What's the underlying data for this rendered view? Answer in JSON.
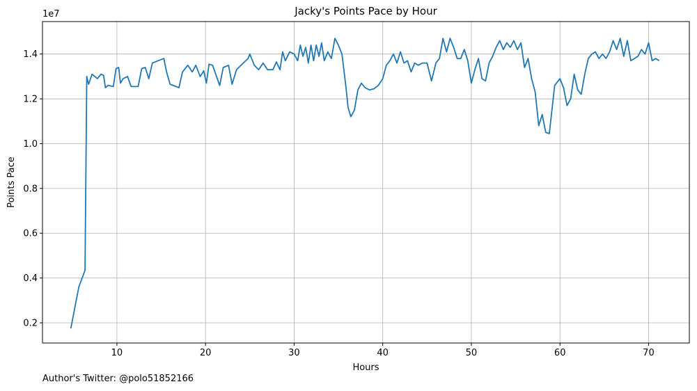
{
  "chart_data": {
    "type": "line",
    "title": "Jacky's Points Pace by Hour",
    "xlabel": "Hours",
    "ylabel": "Points Pace",
    "y_multiplier_label": "1e7",
    "xlim": [
      1.6,
      74.6
    ],
    "ylim": [
      0.11,
      1.545
    ],
    "x_ticks": [
      10,
      20,
      30,
      40,
      50,
      60,
      70
    ],
    "y_ticks": [
      0.2,
      0.4,
      0.6,
      0.8,
      1.0,
      1.2,
      1.4
    ],
    "x_tick_labels": [
      "10",
      "20",
      "30",
      "40",
      "50",
      "60",
      "70"
    ],
    "y_tick_labels": [
      "0.2",
      "0.4",
      "0.6",
      "0.8",
      "1.0",
      "1.2",
      "1.4"
    ],
    "grid": true,
    "series": [
      {
        "color": "#1f77b4",
        "x": [
          4.8,
          5.7,
          6.4,
          6.6,
          6.8,
          7.2,
          7.8,
          8.2,
          8.5,
          8.7,
          9.0,
          9.6,
          9.9,
          10.2,
          10.4,
          10.7,
          11.2,
          11.6,
          12.4,
          12.8,
          13.2,
          13.6,
          14.0,
          15.3,
          15.6,
          16.0,
          17.0,
          17.4,
          18.0,
          18.5,
          18.9,
          19.4,
          19.8,
          20.1,
          20.4,
          20.8,
          21.6,
          22.0,
          22.6,
          23.0,
          23.5,
          24.0,
          24.8,
          25.0,
          25.5,
          26.0,
          26.5,
          27.0,
          27.6,
          28.0,
          28.4,
          28.7,
          29.0,
          29.5,
          30.0,
          30.4,
          30.7,
          31.0,
          31.3,
          31.6,
          31.9,
          32.2,
          32.5,
          32.8,
          33.1,
          33.4,
          33.8,
          34.2,
          34.6,
          35.0,
          35.4,
          35.8,
          36.1,
          36.4,
          36.8,
          37.2,
          37.6,
          38.0,
          38.5,
          39.0,
          39.5,
          40.0,
          40.4,
          40.8,
          41.2,
          41.6,
          42.0,
          42.4,
          42.8,
          43.2,
          43.6,
          44.0,
          44.5,
          45.0,
          45.5,
          46.0,
          46.4,
          46.8,
          47.2,
          47.6,
          48.0,
          48.4,
          48.8,
          49.2,
          49.6,
          50.0,
          50.4,
          50.8,
          51.2,
          51.6,
          52.0,
          52.4,
          52.8,
          53.2,
          53.6,
          54.0,
          54.4,
          54.8,
          55.2,
          55.6,
          56.0,
          56.4,
          56.8,
          57.2,
          57.6,
          58.0,
          58.4,
          58.8,
          59.4,
          60.0,
          60.4,
          60.8,
          61.2,
          61.6,
          62.0,
          62.4,
          62.8,
          63.2,
          63.6,
          64.0,
          64.4,
          64.8,
          65.2,
          65.6,
          66.0,
          66.4,
          66.8,
          67.2,
          67.6,
          68.0,
          68.4,
          68.8,
          69.2,
          69.6,
          70.0,
          70.4,
          70.8,
          71.2
        ],
        "values": [
          0.175,
          0.36,
          0.435,
          1.3,
          1.265,
          1.31,
          1.29,
          1.31,
          1.305,
          1.25,
          1.26,
          1.255,
          1.335,
          1.34,
          1.27,
          1.29,
          1.3,
          1.255,
          1.255,
          1.335,
          1.34,
          1.29,
          1.36,
          1.38,
          1.32,
          1.265,
          1.25,
          1.32,
          1.35,
          1.32,
          1.35,
          1.3,
          1.325,
          1.27,
          1.355,
          1.35,
          1.26,
          1.34,
          1.35,
          1.265,
          1.33,
          1.35,
          1.38,
          1.4,
          1.35,
          1.33,
          1.36,
          1.33,
          1.33,
          1.365,
          1.33,
          1.41,
          1.37,
          1.41,
          1.4,
          1.37,
          1.44,
          1.39,
          1.43,
          1.36,
          1.44,
          1.37,
          1.44,
          1.39,
          1.45,
          1.37,
          1.41,
          1.38,
          1.47,
          1.44,
          1.4,
          1.27,
          1.16,
          1.12,
          1.15,
          1.24,
          1.27,
          1.25,
          1.24,
          1.245,
          1.26,
          1.29,
          1.35,
          1.37,
          1.4,
          1.36,
          1.41,
          1.36,
          1.37,
          1.32,
          1.36,
          1.35,
          1.36,
          1.36,
          1.28,
          1.36,
          1.38,
          1.47,
          1.41,
          1.47,
          1.43,
          1.38,
          1.38,
          1.42,
          1.37,
          1.27,
          1.33,
          1.38,
          1.29,
          1.28,
          1.36,
          1.39,
          1.43,
          1.46,
          1.42,
          1.45,
          1.43,
          1.46,
          1.42,
          1.45,
          1.34,
          1.38,
          1.29,
          1.23,
          1.08,
          1.13,
          1.05,
          1.045,
          1.26,
          1.29,
          1.25,
          1.17,
          1.2,
          1.31,
          1.24,
          1.22,
          1.31,
          1.38,
          1.4,
          1.41,
          1.38,
          1.4,
          1.38,
          1.41,
          1.46,
          1.42,
          1.47,
          1.39,
          1.46,
          1.37,
          1.38,
          1.39,
          1.42,
          1.4,
          1.45,
          1.37,
          1.38,
          1.37
        ]
      }
    ]
  },
  "footer_text": "Author's Twitter: @polo51852166"
}
